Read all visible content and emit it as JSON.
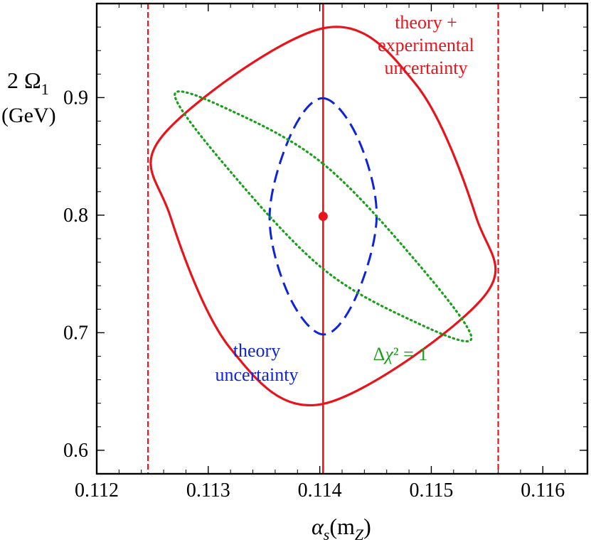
{
  "chart_data": {
    "type": "scatter",
    "title": "",
    "xlabel": {
      "main": "α",
      "sub": "s",
      "open": "(m",
      "sub2": "Z",
      "close": ")"
    },
    "ylabel": {
      "line1": "2 Ω",
      "line1_sub": "1",
      "line2": "(GeV)"
    },
    "xlim": [
      0.112,
      0.1164
    ],
    "ylim": [
      0.58,
      0.98
    ],
    "x_ticks": [
      {
        "value": 0.112,
        "label": "0.112"
      },
      {
        "value": 0.113,
        "label": "0.113"
      },
      {
        "value": 0.114,
        "label": "0.114"
      },
      {
        "value": 0.115,
        "label": "0.115"
      },
      {
        "value": 0.116,
        "label": "0.116"
      }
    ],
    "y_ticks": [
      {
        "value": 0.6,
        "label": "0.6"
      },
      {
        "value": 0.7,
        "label": "0.7"
      },
      {
        "value": 0.8,
        "label": "0.8"
      },
      {
        "value": 0.9,
        "label": "0.9"
      }
    ],
    "central_point": {
      "x": 0.11403,
      "y": 0.799
    },
    "vertical_lines": [
      {
        "name": "central",
        "x": 0.11403,
        "style": "solid",
        "color": "#e8141c"
      },
      {
        "name": "lower",
        "x": 0.11246,
        "style": "dashed",
        "color": "#e8141c"
      },
      {
        "name": "upper",
        "x": 0.1156,
        "style": "dashed",
        "color": "#e8141c"
      }
    ],
    "series": [
      {
        "name": "theory + experimental uncertainty",
        "style": "solid",
        "color": "#e8141c",
        "points": [
          [
            0.11403,
            0.959
          ],
          [
            0.11486,
            0.9115
          ],
          [
            0.1154,
            0.799
          ],
          [
            0.11547,
            0.7305
          ],
          [
            0.11403,
            0.6395
          ],
          [
            0.1132,
            0.6865
          ],
          [
            0.11266,
            0.799
          ],
          [
            0.11259,
            0.8675
          ]
        ]
      },
      {
        "name": "theory uncertainty",
        "style": "dashed",
        "color": "#0f24d8",
        "points": [
          [
            0.11403,
            0.8995
          ],
          [
            0.11434,
            0.8657
          ],
          [
            0.11451,
            0.799
          ],
          [
            0.11432,
            0.7295
          ],
          [
            0.11403,
            0.6985
          ],
          [
            0.11372,
            0.7323
          ],
          [
            0.11355,
            0.799
          ],
          [
            0.11374,
            0.8685
          ]
        ]
      },
      {
        "name": "Δχ² = 1",
        "style": "dotted",
        "color": "#19a01a",
        "points": [
          [
            0.11403,
            0.8437
          ],
          [
            0.11485,
            0.7622
          ],
          [
            0.11536,
            0.6956
          ],
          [
            0.11484,
            0.7098
          ],
          [
            0.11403,
            0.7543
          ],
          [
            0.11321,
            0.8358
          ],
          [
            0.1127,
            0.9024
          ],
          [
            0.11322,
            0.8882
          ]
        ]
      }
    ],
    "annotations": [
      {
        "name": "theory-experimental",
        "lines": [
          "theory +",
          "experimental",
          "uncertainty"
        ],
        "color": "#e8141c"
      },
      {
        "name": "theory-uncertainty",
        "lines": [
          "theory",
          "uncertainty"
        ],
        "color": "#0f24d8"
      },
      {
        "name": "delta-chi2",
        "lines": [
          "Δχ² = 1"
        ],
        "color": "#19a01a"
      }
    ]
  }
}
